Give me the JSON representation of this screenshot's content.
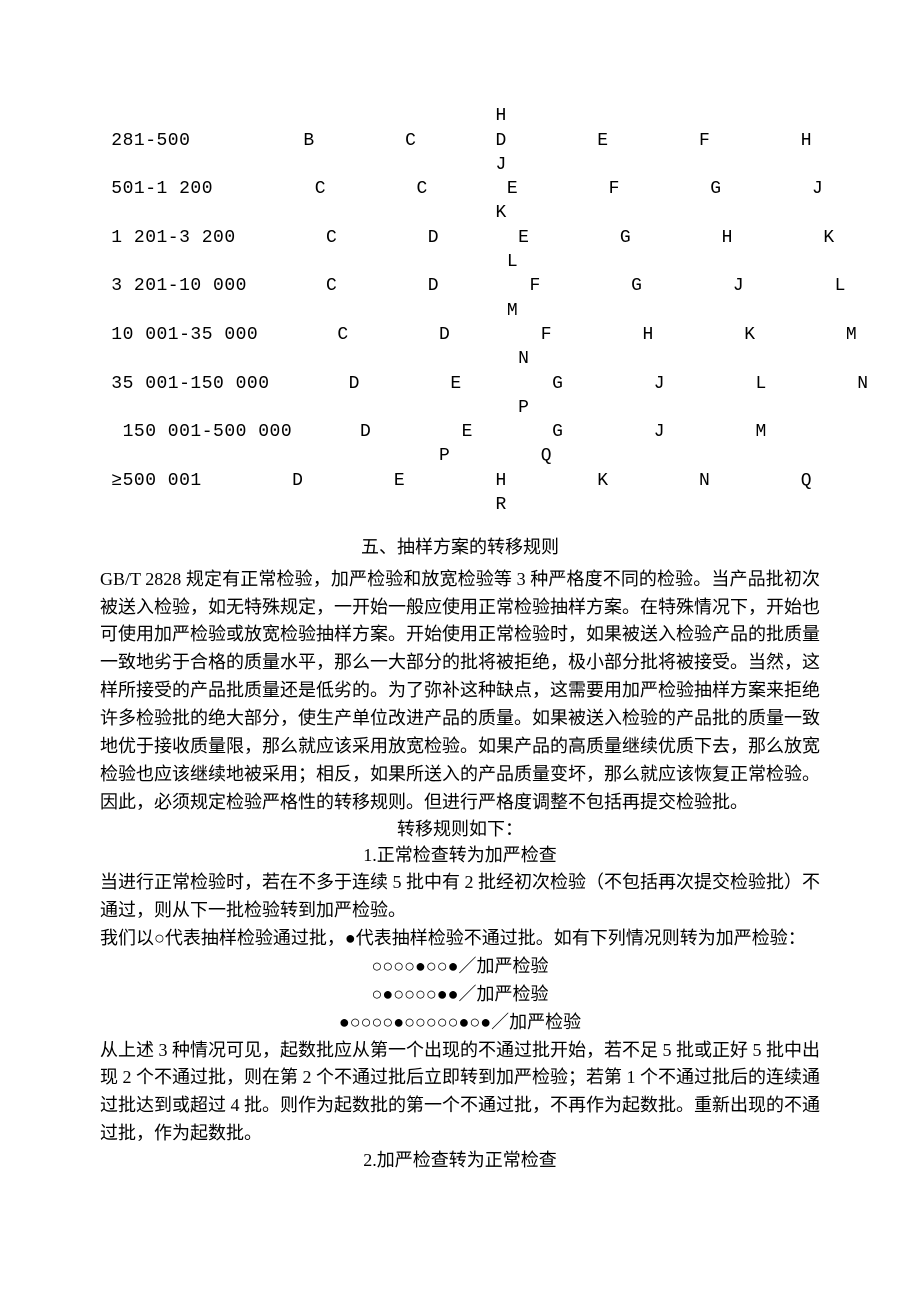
{
  "table": {
    "rows": [
      {
        "range": "",
        "c1": "",
        "c2": "",
        "c3": "H",
        "c4": "",
        "c5": "",
        "c6": ""
      },
      {
        "range": "281-500",
        "c1": "B",
        "c2": "C",
        "c3": "D",
        "c4": "E",
        "c5": "F",
        "c6": "H"
      },
      {
        "range": "",
        "c1": "",
        "c2": "",
        "c3": "J",
        "c4": "",
        "c5": "",
        "c6": ""
      },
      {
        "range": "501-1 200",
        "c1": "C",
        "c2": "C",
        "c3": "E",
        "c4": "F",
        "c5": "G",
        "c6": "J"
      },
      {
        "range": "",
        "c1": "",
        "c2": "",
        "c3": "K",
        "c4": "",
        "c5": "",
        "c6": ""
      },
      {
        "range": "1 201-3 200",
        "c1": "C",
        "c2": "D",
        "c3": "E",
        "c4": "G",
        "c5": "H",
        "c6": "K"
      },
      {
        "range": "",
        "c1": "",
        "c2": "",
        "c3": "L",
        "c4": "",
        "c5": "",
        "c6": ""
      },
      {
        "range": "3 201-10 000",
        "c1": "C",
        "c2": "D",
        "c3": "F",
        "c4": "G",
        "c5": "J",
        "c6": "L"
      },
      {
        "range": "",
        "c1": "",
        "c2": "",
        "c3": "M",
        "c4": "",
        "c5": "",
        "c6": ""
      },
      {
        "range": "10 001-35 000",
        "c1": "C",
        "c2": "D",
        "c3": "F",
        "c4": "H",
        "c5": "K",
        "c6": "M"
      },
      {
        "range": "",
        "c1": "",
        "c2": "",
        "c3": "N",
        "c4": "",
        "c5": "",
        "c6": ""
      },
      {
        "range": "35 001-150 000",
        "c1": "D",
        "c2": "E",
        "c3": "G",
        "c4": "J",
        "c5": "L",
        "c6": "N"
      },
      {
        "range": "",
        "c1": "",
        "c2": "",
        "c3": "P",
        "c4": "",
        "c5": "",
        "c6": ""
      },
      {
        "range": " 150 001-500 000",
        "c1": "D",
        "c2": "E",
        "c3": "G",
        "c4": "J",
        "c5": "M",
        "c6": ""
      },
      {
        "range": "",
        "c1": "",
        "c2": "",
        "c2b": "P",
        "c3": "Q",
        "c4": "",
        "c5": "",
        "c6": ""
      },
      {
        "range": "≥500 001",
        "c1": "D",
        "c2": "E",
        "c3": "H",
        "c4": "K",
        "c5": "N",
        "c6": "Q"
      },
      {
        "range": "",
        "c1": "",
        "c2": "",
        "c3": "R",
        "c4": "",
        "c5": "",
        "c6": ""
      }
    ]
  },
  "section5_title": "五、抽样方案的转移规则",
  "para1": "GB/T 2828 规定有正常检验，加严检验和放宽检验等 3 种严格度不同的检验。当产品批初次被送入检验，如无特殊规定，一开始一般应使用正常检验抽样方案。在特殊情况下，开始也可使用加严检验或放宽检验抽样方案。开始使用正常检验时，如果被送入检验产品的批质量一致地劣于合格的质量水平，那么一大部分的批将被拒绝，极小部分批将被接受。当然，这样所接受的产品批质量还是低劣的。为了弥补这种缺点，这需要用加严检验抽样方案来拒绝许多检验批的绝大部分，使生产单位改进产品的质量。如果被送入检验的产品批的质量一致地优于接收质量限，那么就应该采用放宽检验。如果产品的高质量继续优质下去，那么放宽检验也应该继续地被采用；相反，如果所送入的产品质量变坏，那么就应该恢复正常检验。因此，必须规定检验严格性的转移规则。但进行严格度调整不包括再提交检验批。",
  "rules_heading": "转移规则如下：",
  "rule1_title": "1.正常检查转为加严检查",
  "rule1_text": "当进行正常检验时，若在不多于连续 5 批中有 2 批经初次检验（不包括再次提交检验批）不通过，则从下一批检验转到加严检验。",
  "rule1_explain": "我们以○代表抽样检验通过批，●代表抽样检验不通过批。如有下列情况则转为加严检验：",
  "pattern1": "○○○○●○○●／加严检验",
  "pattern2": "○●○○○○●●／加严检验",
  "pattern3": "●○○○○●○○○○○●○●／加严检验",
  "rule1_tail": "从上述 3 种情况可见，起数批应从第一个出现的不通过批开始，若不足 5 批或正好 5 批中出现 2 个不通过批，则在第 2 个不通过批后立即转到加严检验；若第 1 个不通过批后的连续通过批达到或超过 4 批。则作为起数批的第一个不通过批，不再作为起数批。重新出现的不通过批，作为起数批。",
  "rule2_title": "2.加严检查转为正常检查"
}
